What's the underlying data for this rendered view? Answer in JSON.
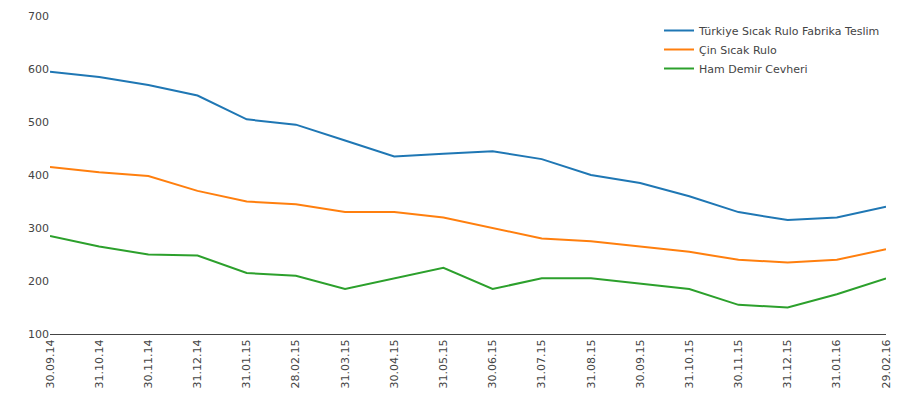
{
  "chart_data": {
    "type": "line",
    "categories": [
      "30.09.14",
      "31.10.14",
      "30.11.14",
      "31.12.14",
      "31.01.15",
      "28.02.15",
      "31.03.15",
      "30.04.15",
      "31.05.15",
      "30.06.15",
      "31.07.15",
      "31.08.15",
      "30.09.15",
      "31.10.15",
      "30.11.15",
      "31.12.15",
      "31.01.16",
      "29.02.16"
    ],
    "series": [
      {
        "name": "Türkiye Sıcak Rulo Fabrika Teslim",
        "values": [
          595,
          585,
          570,
          550,
          505,
          495,
          465,
          435,
          440,
          445,
          430,
          400,
          385,
          360,
          330,
          315,
          320,
          340
        ]
      },
      {
        "name": "Çin Sıcak Rulo",
        "values": [
          415,
          405,
          398,
          370,
          350,
          345,
          330,
          330,
          320,
          300,
          280,
          275,
          265,
          255,
          240,
          235,
          240,
          260
        ]
      },
      {
        "name": "Ham Demir Cevheri",
        "values": [
          285,
          265,
          250,
          248,
          215,
          210,
          185,
          205,
          225,
          185,
          205,
          205,
          195,
          185,
          155,
          150,
          175,
          205
        ]
      }
    ],
    "ylim": [
      100,
      700
    ],
    "yticks": [
      100,
      200,
      300,
      400,
      500,
      600,
      700
    ],
    "grid": false,
    "legend": "upper right"
  }
}
